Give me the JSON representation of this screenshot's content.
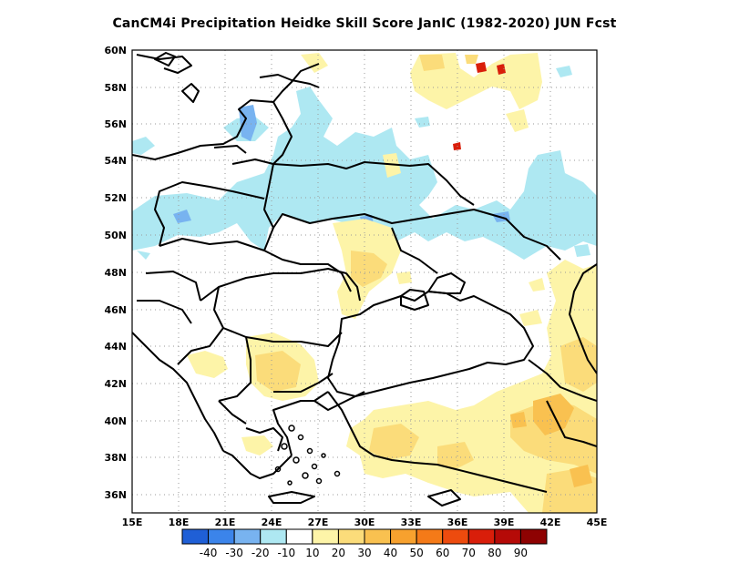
{
  "title": "CanCM4i  Precipitation Heidke Skill Score JanIC (1982-2020) JUN Fcst",
  "map": {
    "lon_range": [
      15,
      45
    ],
    "lat_range": [
      35,
      60
    ],
    "x_ticks": [
      "15E",
      "18E",
      "21E",
      "24E",
      "27E",
      "30E",
      "33E",
      "36E",
      "39E",
      "42E",
      "45E"
    ],
    "y_ticks": [
      "36N",
      "38N",
      "40N",
      "42N",
      "44N",
      "46N",
      "48N",
      "50N",
      "52N",
      "54N",
      "56N",
      "58N",
      "60N"
    ],
    "grid": true
  },
  "colorbar": {
    "colors": [
      "#1f5fd6",
      "#3b84ea",
      "#78b3f0",
      "#aee8f2",
      "#ffffff",
      "#fdf4a8",
      "#fbdc7a",
      "#f9c150",
      "#f7a12e",
      "#f47a18",
      "#ed4b0e",
      "#d91e0a",
      "#b50a07",
      "#8e0202"
    ],
    "labels": [
      "-40",
      "-30",
      "-20",
      "-10",
      "10",
      "20",
      "30",
      "40",
      "50",
      "60",
      "70",
      "80",
      "90"
    ]
  },
  "legend_colors": {
    "lightblue": "#aee8f2",
    "blue": "#78b3f0",
    "darkblue": "#3b84ea",
    "yellow": "#fdf4a8",
    "lightorange": "#fbdc7a",
    "orange": "#f9c150",
    "red": "#d91e0a"
  }
}
